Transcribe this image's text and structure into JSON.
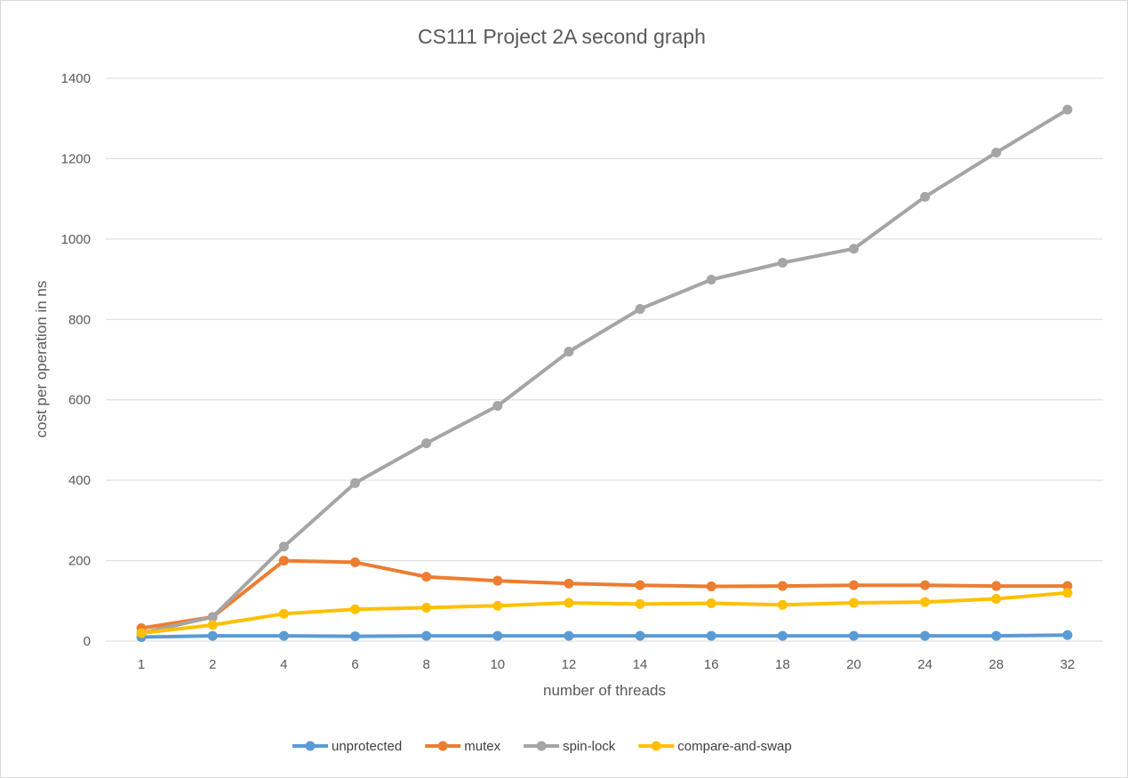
{
  "chart_data": {
    "type": "line",
    "title": "CS111 Project 2A second graph",
    "xlabel": "number of threads",
    "ylabel": "cost per operation in ns",
    "categories": [
      "1",
      "2",
      "4",
      "6",
      "8",
      "10",
      "12",
      "14",
      "16",
      "18",
      "20",
      "24",
      "28",
      "32"
    ],
    "ylim": [
      0,
      1400
    ],
    "yticks": [
      0,
      200,
      400,
      600,
      800,
      1000,
      1200,
      1400
    ],
    "grid": true,
    "legend_position": "bottom",
    "series": [
      {
        "name": "unprotected",
        "color": "#5B9BD5",
        "values": [
          10,
          13,
          13,
          12,
          13,
          13,
          13,
          13,
          13,
          13,
          13,
          13,
          13,
          15
        ]
      },
      {
        "name": "mutex",
        "color": "#ED7D31",
        "values": [
          32,
          60,
          200,
          196,
          160,
          150,
          143,
          139,
          136,
          137,
          139,
          139,
          137,
          137
        ]
      },
      {
        "name": "spin-lock",
        "color": "#A5A5A5",
        "values": [
          20,
          60,
          235,
          393,
          492,
          585,
          720,
          826,
          899,
          941,
          976,
          1105,
          1215,
          1322
        ]
      },
      {
        "name": "compare-and-swap",
        "color": "#FFC000",
        "values": [
          20,
          40,
          68,
          79,
          83,
          88,
          95,
          92,
          94,
          90,
          95,
          97,
          105,
          120
        ]
      }
    ]
  }
}
